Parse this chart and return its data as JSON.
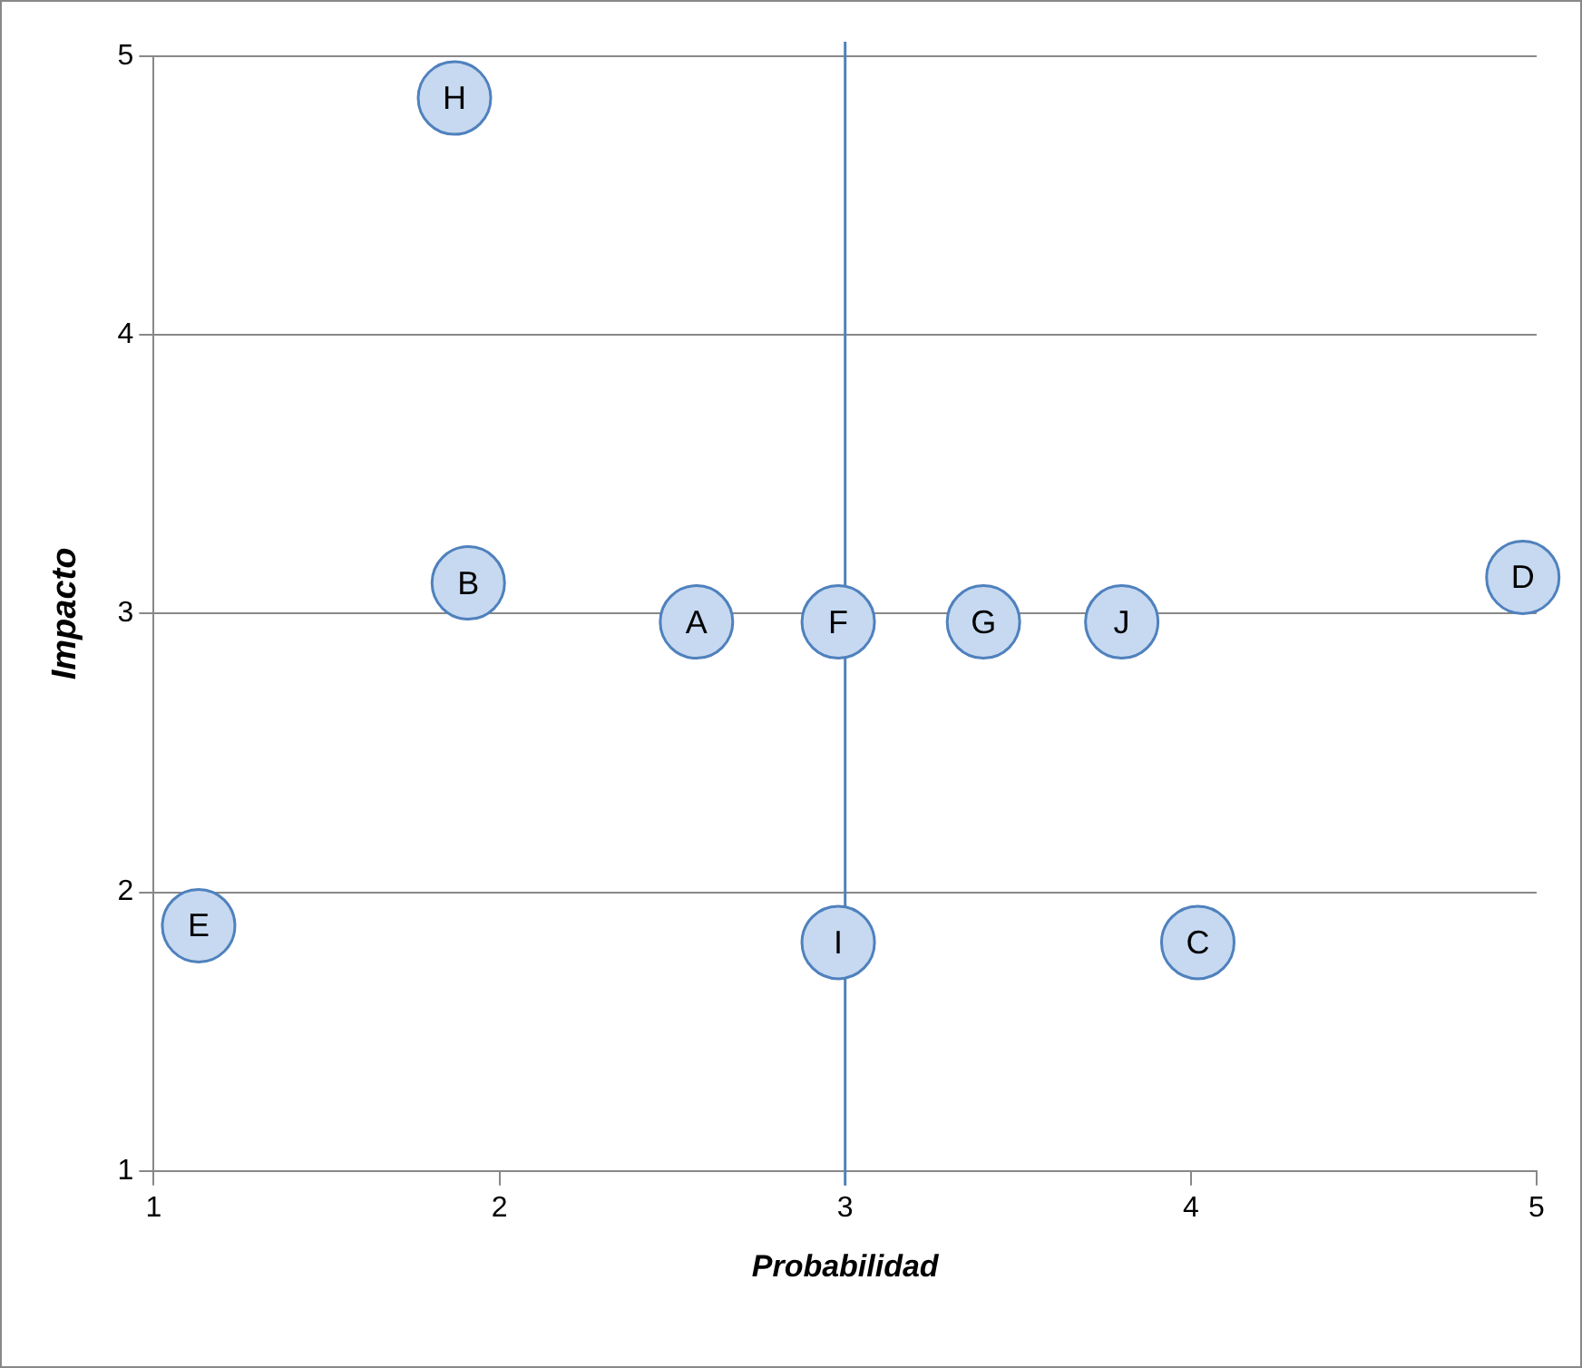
{
  "chart_data": {
    "type": "scatter",
    "xlabel": "Probabilidad",
    "ylabel": "Impacto",
    "xlim": [
      1,
      5
    ],
    "ylim": [
      1,
      5
    ],
    "xticks": [
      1,
      2,
      3,
      4,
      5
    ],
    "yticks": [
      1,
      2,
      3,
      4,
      5
    ],
    "grid": "y",
    "legend": false,
    "marker": "circle",
    "ref_lines": [
      {
        "axis": "x",
        "value": 3,
        "color": "#4f81bd"
      }
    ],
    "series": [
      {
        "name": "H",
        "color": "#c6d9f1",
        "x": [
          1.87
        ],
        "values": [
          4.85
        ]
      },
      {
        "name": "B",
        "color": "#c6d9f1",
        "x": [
          1.91
        ],
        "values": [
          3.11
        ]
      },
      {
        "name": "A",
        "color": "#c6d9f1",
        "x": [
          2.57
        ],
        "values": [
          2.97
        ]
      },
      {
        "name": "F",
        "color": "#c6d9f1",
        "x": [
          2.98
        ],
        "values": [
          2.97
        ]
      },
      {
        "name": "G",
        "color": "#c6d9f1",
        "x": [
          3.4
        ],
        "values": [
          2.97
        ]
      },
      {
        "name": "J",
        "color": "#c6d9f1",
        "x": [
          3.8
        ],
        "values": [
          2.97
        ]
      },
      {
        "name": "D",
        "color": "#c6d9f1",
        "x": [
          4.96
        ],
        "values": [
          3.13
        ]
      },
      {
        "name": "E",
        "color": "#c6d9f1",
        "x": [
          1.13
        ],
        "values": [
          1.88
        ]
      },
      {
        "name": "I",
        "color": "#c6d9f1",
        "x": [
          2.98
        ],
        "values": [
          1.82
        ]
      },
      {
        "name": "C",
        "color": "#c6d9f1",
        "x": [
          4.02
        ],
        "values": [
          1.82
        ]
      }
    ]
  }
}
